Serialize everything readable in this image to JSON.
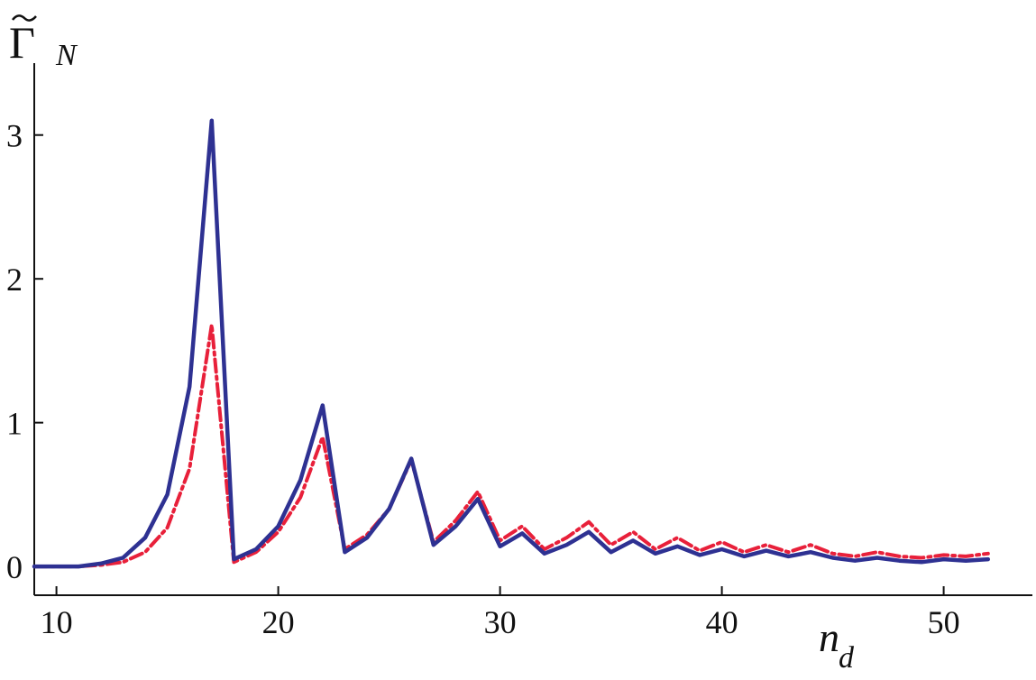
{
  "chart_data": {
    "type": "line",
    "title": "",
    "ylabel": "Γ̃_N",
    "ylabel_main": "Γ",
    "ylabel_sub": "N",
    "xlabel": "n_d",
    "xlabel_main": "n",
    "xlabel_sub": "d",
    "xlim": [
      9,
      54
    ],
    "ylim": [
      -0.2,
      3.5
    ],
    "xticks": [
      10,
      20,
      30,
      40,
      50
    ],
    "yticks": [
      0,
      1,
      2,
      3
    ],
    "grid": false,
    "legend": "none",
    "colors": {
      "series_solid": "#2e3192",
      "series_dashdot": "#e8203a",
      "axis": "#111111"
    },
    "x": [
      9,
      10,
      11,
      12,
      13,
      14,
      15,
      16,
      17,
      18,
      19,
      20,
      21,
      22,
      23,
      24,
      25,
      26,
      27,
      28,
      29,
      30,
      31,
      32,
      33,
      34,
      35,
      36,
      37,
      38,
      39,
      40,
      41,
      42,
      43,
      44,
      45,
      46,
      47,
      48,
      49,
      50,
      51,
      52
    ],
    "series": [
      {
        "style": "solid",
        "values": [
          0.0,
          0.0,
          0.0,
          0.02,
          0.06,
          0.2,
          0.5,
          1.25,
          3.1,
          0.05,
          0.12,
          0.28,
          0.6,
          1.12,
          0.1,
          0.2,
          0.4,
          0.75,
          0.15,
          0.28,
          0.47,
          0.14,
          0.23,
          0.09,
          0.15,
          0.24,
          0.1,
          0.18,
          0.09,
          0.14,
          0.08,
          0.12,
          0.07,
          0.11,
          0.07,
          0.1,
          0.06,
          0.04,
          0.06,
          0.04,
          0.03,
          0.05,
          0.04,
          0.05
        ]
      },
      {
        "style": "dash-dot",
        "values": [
          0.0,
          0.0,
          0.0,
          0.01,
          0.03,
          0.1,
          0.27,
          0.68,
          1.68,
          0.03,
          0.1,
          0.24,
          0.48,
          0.9,
          0.12,
          0.22,
          0.4,
          0.74,
          0.17,
          0.32,
          0.52,
          0.18,
          0.28,
          0.12,
          0.2,
          0.31,
          0.15,
          0.24,
          0.12,
          0.2,
          0.11,
          0.17,
          0.1,
          0.15,
          0.1,
          0.15,
          0.09,
          0.07,
          0.1,
          0.07,
          0.06,
          0.08,
          0.07,
          0.09
        ]
      }
    ]
  }
}
